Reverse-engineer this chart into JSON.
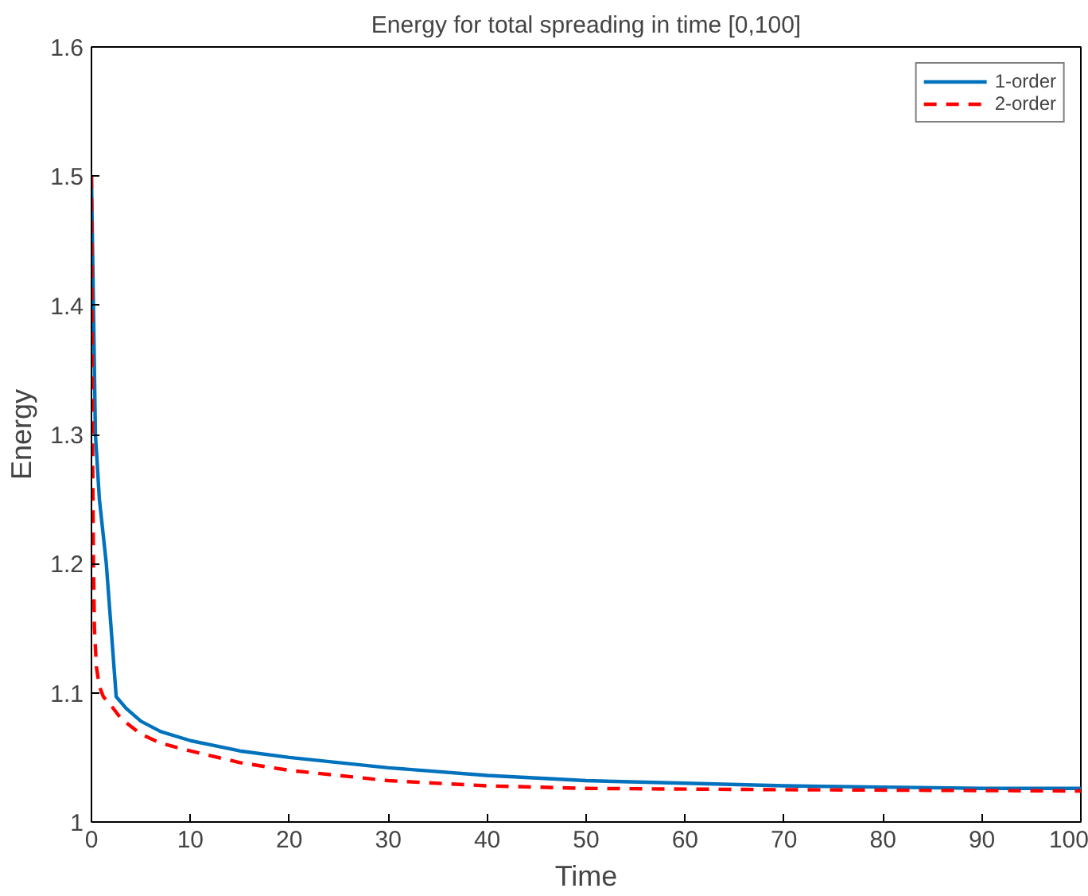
{
  "chart_data": {
    "type": "line",
    "title": "Energy for total spreading in time [0,100]",
    "xlabel": "Time",
    "ylabel": "Energy",
    "xlim": [
      0,
      100
    ],
    "ylim": [
      1,
      1.6
    ],
    "xticks": [
      0,
      10,
      20,
      30,
      40,
      50,
      60,
      70,
      80,
      90,
      100
    ],
    "yticks": [
      1,
      1.1,
      1.2,
      1.3,
      1.4,
      1.5,
      1.6
    ],
    "grid": false,
    "legend": "top right",
    "series": [
      {
        "name": "1-order",
        "color": "#0072bd",
        "line_style": "solid",
        "x": [
          0,
          0.2,
          0.4,
          0.8,
          1.5,
          2.5,
          3.5,
          5,
          7,
          10,
          15,
          20,
          30,
          40,
          50,
          60,
          70,
          80,
          90,
          100
        ],
        "values": [
          1.5,
          1.4,
          1.3,
          1.25,
          1.2,
          1.097,
          1.088,
          1.078,
          1.07,
          1.063,
          1.055,
          1.05,
          1.042,
          1.036,
          1.032,
          1.03,
          1.028,
          1.027,
          1.026,
          1.026
        ]
      },
      {
        "name": "2-order",
        "color": "#ff0000",
        "line_style": "dashed",
        "x": [
          0,
          0.1,
          0.2,
          0.3,
          0.5,
          0.8,
          1.2,
          2,
          3,
          5,
          7,
          10,
          15,
          20,
          30,
          40,
          50,
          70,
          100
        ],
        "values": [
          1.5,
          1.3,
          1.2,
          1.15,
          1.12,
          1.105,
          1.097,
          1.09,
          1.08,
          1.068,
          1.061,
          1.055,
          1.046,
          1.04,
          1.032,
          1.028,
          1.026,
          1.025,
          1.024
        ]
      }
    ]
  }
}
